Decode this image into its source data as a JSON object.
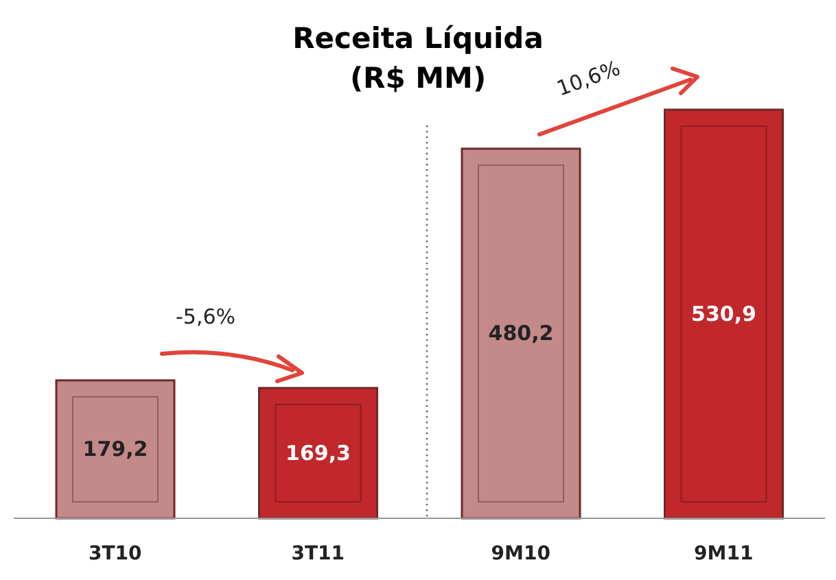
{
  "chart_data": {
    "type": "bar",
    "title": "Receita Líquida",
    "subtitle": "(R$ MM)",
    "categories": [
      "3T10",
      "3T11",
      "9M10",
      "9M11"
    ],
    "values": [
      179.2,
      169.3,
      480.2,
      530.9
    ],
    "colors": [
      "#c48a8a",
      "#c0282c",
      "#c48a8a",
      "#c0282c"
    ],
    "value_labels": [
      "179,2",
      "169,3",
      "480,2",
      "530,9"
    ],
    "annotations": [
      "-5,6%",
      "10,6%"
    ]
  }
}
